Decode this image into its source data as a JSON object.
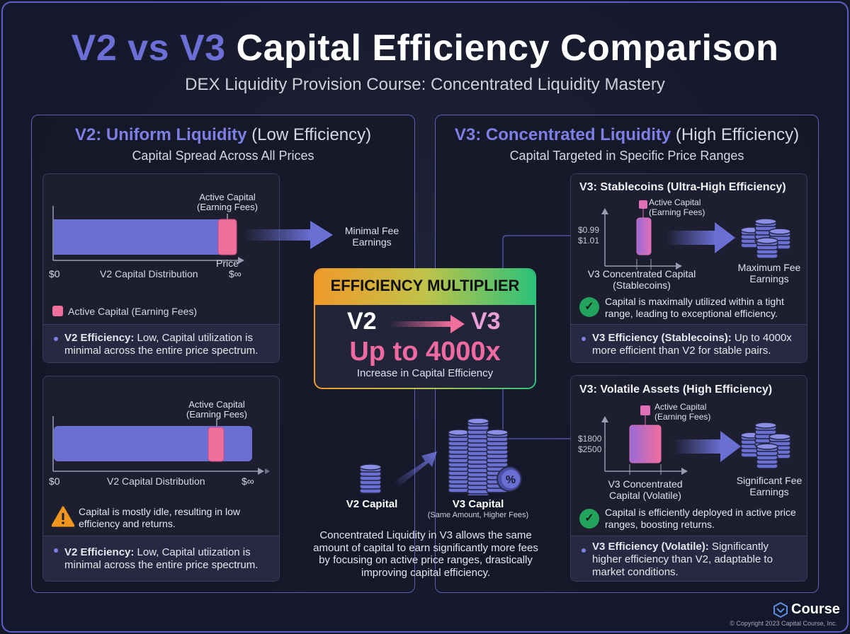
{
  "header": {
    "title_accent": "V2 vs V3",
    "title_rest": " Capital Efficiency Comparison",
    "subtitle": "DEX Liquidity Provision Course: Concentrated Liquidity Mastery"
  },
  "v2": {
    "title_bold": "V2: Uniform Liquidity",
    "title_light": " (Low Efficiency)",
    "subtitle": "Capital Spread Across All Prices",
    "card1": {
      "active_label_1": "Active Capital",
      "active_label_2": "(Earning Fees)",
      "price_label": "Price",
      "x_min": "$0",
      "x_max": "$∞",
      "axis_label": "V2 Capital Distribution",
      "legend": "Active Capital (Earning Fees)",
      "footer_bold": "V2 Efficiency:",
      "footer_text": " Low, Capital utilization is minimal across the entire price spectrum."
    },
    "arrow_label_1": "Minimal Fee",
    "arrow_label_2": "Earnings",
    "card2": {
      "active_label_1": "Active Capital",
      "active_label_2": "(Earning Fees)",
      "x_min": "$0",
      "x_max": "$∞",
      "axis_label": "V2 Capital Distribution",
      "warning": "Capital is mostly idle, resulting in low efficiency and returns.",
      "footer_bold": "V2 Efficiency:",
      "footer_text": " Low, Capital utiization is minimal across the entire price spectrum."
    }
  },
  "v3": {
    "title_bold": "V3: Concentrated Liquidity",
    "title_light": " (High Efficiency)",
    "subtitle": "Capital Targeted in Specific Price Ranges",
    "stable": {
      "title": "V3: Stablecoins (Ultra-High Efficiency)",
      "active_label_1": "Active Capital",
      "active_label_2": "(Earning Fees)",
      "range_low": "$0.99",
      "range_high": "$1.01",
      "axis_label_1": "V3 Concentrated Capital",
      "axis_label_2": "(Stablecoins)",
      "result_1": "Maximum Fee",
      "result_2": "Earnings",
      "note": "Capital is maximally utilized within a tight range, leading to exceptional efficiency.",
      "footer_bold": "V3 Efficiency (Stablecoins):",
      "footer_text": " Up to 4000x more efficient than V2 for stable pairs."
    },
    "volatile": {
      "title": "V3: Volatile Assets (High Efficiency)",
      "active_label_1": "Active Capital",
      "active_label_2": "(Earning Fees)",
      "range_low": "$1800",
      "range_high": "$2500",
      "axis_label_1": "V3 Concentrated",
      "axis_label_2": "Capital (Volatile)",
      "result_1": "Significant Fee",
      "result_2": "Earnings",
      "note": "Capital is efficiently deployed in active price ranges, boosting returns.",
      "footer_bold": "V3 Efficiency (Volatile):",
      "footer_text": " Significantly higher efficiency than V2, adaptable to market conditions."
    }
  },
  "multiplier": {
    "header": "EFFICIENCY MULTIPLIER",
    "from": "V2",
    "to": "V3",
    "value": "Up to 4000x",
    "caption": "Increase in Capital Efficiency"
  },
  "center": {
    "v2_capital": "V2 Capital",
    "v3_capital": "V3 Capital",
    "v3_capital_sub": "(Same Amount, Higher Fees)",
    "percent_symbol": "%",
    "description": "Concentrated Liquidity in V3 allows the same amount of capital to earn significantly more fees by focusing on active price ranges, drastically improving capital efficiency."
  },
  "footer": {
    "brand": "Course",
    "copyright": "© Copyright 2023 Capital Course, Inc."
  },
  "colors": {
    "accent": "#6b6fd6",
    "active": "#f06f9c",
    "bar": "#6a6fd4",
    "ok": "#22a45d",
    "warn": "#f0961f"
  }
}
